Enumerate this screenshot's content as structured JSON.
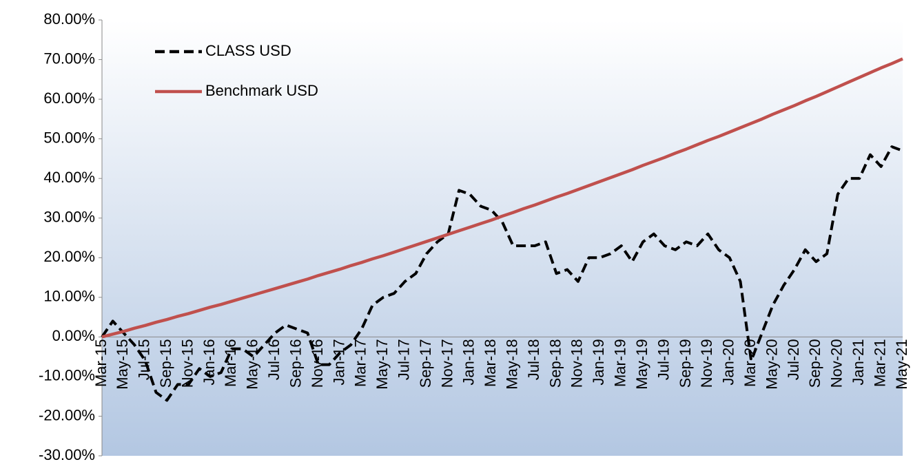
{
  "chart_data": {
    "type": "line",
    "categories": [
      "Mar-15",
      null,
      "May-15",
      null,
      "Jul-15",
      null,
      "Sep-15",
      null,
      "Nov-15",
      null,
      "Jan-16",
      null,
      "Mar-16",
      null,
      "May-16",
      null,
      "Jul-16",
      null,
      "Sep-16",
      null,
      "Nov-16",
      null,
      "Jan-17",
      null,
      "Mar-17",
      null,
      "May-17",
      null,
      "Jul-17",
      null,
      "Sep-17",
      null,
      "Nov-17",
      null,
      "Jan-18",
      null,
      "Mar-18",
      null,
      "May-18",
      null,
      "Jul-18",
      null,
      "Sep-18",
      null,
      "Nov-18",
      null,
      "Jan-19",
      null,
      "Mar-19",
      null,
      "May-19",
      null,
      "Jul-19",
      null,
      "Sep-19",
      null,
      "Nov-19",
      null,
      "Jan-20",
      null,
      "Mar-20",
      null,
      "May-20",
      null,
      "Jul-20",
      null,
      "Sep-20",
      null,
      "Nov-20",
      null,
      "Jan-21",
      null,
      "Mar-21",
      null,
      "May-21"
    ],
    "series": [
      {
        "name": "CLASS USD",
        "color": "#000000",
        "dash": true,
        "values": [
          0,
          4,
          1,
          -2,
          -6,
          -14,
          -16,
          -12,
          -12,
          -8,
          -10,
          -9,
          -3,
          -3,
          -5,
          -2,
          1,
          3,
          2,
          1,
          -7,
          -7,
          -4,
          -2,
          2,
          8,
          10,
          11,
          14,
          16,
          21,
          24,
          26,
          37,
          36,
          33,
          32,
          29,
          23,
          23,
          23,
          24,
          16,
          17,
          14,
          20,
          20,
          21,
          23,
          19,
          24,
          26,
          23,
          22,
          24,
          23,
          26,
          22,
          20,
          14,
          -6,
          1,
          8,
          13,
          17,
          22,
          19,
          21,
          36,
          40,
          40,
          46,
          43,
          48,
          47
        ]
      },
      {
        "name": "Benchmark USD",
        "color": "#c0504d",
        "dash": false,
        "values": [
          0,
          0.7,
          1.4,
          2.2,
          2.9,
          3.7,
          4.4,
          5.2,
          5.9,
          6.7,
          7.5,
          8.2,
          9.0,
          9.8,
          10.6,
          11.4,
          12.2,
          13.0,
          13.8,
          14.6,
          15.5,
          16.3,
          17.1,
          18.0,
          18.8,
          19.7,
          20.5,
          21.4,
          22.3,
          23.2,
          24.1,
          25.0,
          25.9,
          26.8,
          27.7,
          28.6,
          29.5,
          30.5,
          31.4,
          32.4,
          33.3,
          34.3,
          35.3,
          36.2,
          37.2,
          38.2,
          39.2,
          40.2,
          41.2,
          42.2,
          43.3,
          44.3,
          45.3,
          46.4,
          47.4,
          48.5,
          49.6,
          50.6,
          51.7,
          52.8,
          53.9,
          55.0,
          56.2,
          57.3,
          58.4,
          59.6,
          60.7,
          61.9,
          63.1,
          64.3,
          65.5,
          66.7,
          67.9,
          69.0,
          70.2
        ]
      }
    ],
    "ylim": [
      -30,
      80
    ],
    "yticks": [
      {
        "value": -30,
        "label": "-30.00%"
      },
      {
        "value": -20,
        "label": "-20.00%"
      },
      {
        "value": -10,
        "label": "-10.00%"
      },
      {
        "value": 0,
        "label": "0.00%"
      },
      {
        "value": 10,
        "label": "10.00%"
      },
      {
        "value": 20,
        "label": "20.00%"
      },
      {
        "value": 30,
        "label": "30.00%"
      },
      {
        "value": 40,
        "label": "40.00%"
      },
      {
        "value": 50,
        "label": "50.00%"
      },
      {
        "value": 60,
        "label": "60.00%"
      },
      {
        "value": 70,
        "label": "70.00%"
      },
      {
        "value": 80,
        "label": "80.00%"
      }
    ],
    "legend": "upper left"
  }
}
